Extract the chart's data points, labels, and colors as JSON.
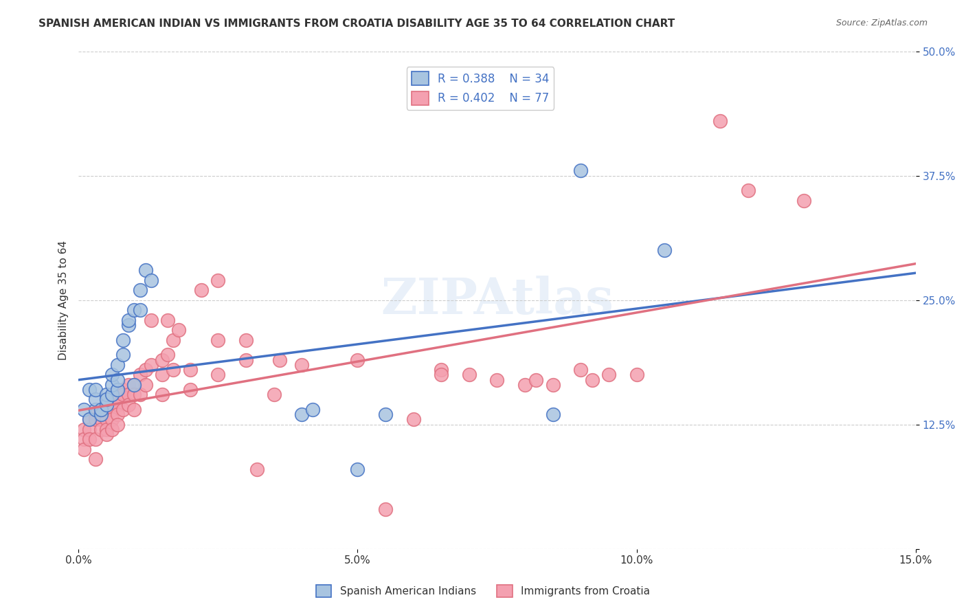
{
  "title": "SPANISH AMERICAN INDIAN VS IMMIGRANTS FROM CROATIA DISABILITY AGE 35 TO 64 CORRELATION CHART",
  "source": "Source: ZipAtlas.com",
  "xlabel_bottom": "",
  "ylabel": "Disability Age 35 to 64",
  "xlim": [
    0,
    0.15
  ],
  "ylim": [
    0,
    0.5
  ],
  "xticks": [
    0.0,
    0.05,
    0.1,
    0.15
  ],
  "xticklabels": [
    "0.0%",
    "5.0%",
    "10.0%",
    "15.0%"
  ],
  "yticks": [
    0.0,
    0.125,
    0.25,
    0.375,
    0.5
  ],
  "yticklabels": [
    "",
    "12.5%",
    "25.0%",
    "37.5%",
    "50.0%"
  ],
  "blue_R": 0.388,
  "blue_N": 34,
  "pink_R": 0.402,
  "pink_N": 77,
  "blue_label": "Spanish American Indians",
  "pink_label": "Immigrants from Croatia",
  "blue_color": "#a8c4e0",
  "pink_color": "#f4a0b0",
  "blue_line_color": "#4472c4",
  "pink_line_color": "#e07080",
  "watermark": "ZIPAtlas",
  "blue_x": [
    0.001,
    0.002,
    0.002,
    0.003,
    0.003,
    0.003,
    0.004,
    0.004,
    0.005,
    0.005,
    0.005,
    0.006,
    0.006,
    0.006,
    0.007,
    0.007,
    0.007,
    0.008,
    0.008,
    0.009,
    0.009,
    0.01,
    0.01,
    0.011,
    0.011,
    0.012,
    0.013,
    0.04,
    0.042,
    0.05,
    0.055,
    0.085,
    0.09,
    0.105
  ],
  "blue_y": [
    0.14,
    0.16,
    0.13,
    0.14,
    0.15,
    0.16,
    0.135,
    0.14,
    0.145,
    0.155,
    0.15,
    0.155,
    0.165,
    0.175,
    0.16,
    0.17,
    0.185,
    0.195,
    0.21,
    0.225,
    0.23,
    0.24,
    0.165,
    0.26,
    0.24,
    0.28,
    0.27,
    0.135,
    0.14,
    0.08,
    0.135,
    0.135,
    0.38,
    0.3
  ],
  "pink_x": [
    0.001,
    0.001,
    0.001,
    0.002,
    0.002,
    0.002,
    0.003,
    0.003,
    0.003,
    0.003,
    0.004,
    0.004,
    0.004,
    0.005,
    0.005,
    0.005,
    0.005,
    0.006,
    0.006,
    0.006,
    0.006,
    0.007,
    0.007,
    0.007,
    0.007,
    0.008,
    0.008,
    0.008,
    0.009,
    0.009,
    0.009,
    0.01,
    0.01,
    0.01,
    0.011,
    0.011,
    0.012,
    0.012,
    0.013,
    0.013,
    0.015,
    0.015,
    0.015,
    0.016,
    0.016,
    0.017,
    0.017,
    0.018,
    0.02,
    0.02,
    0.022,
    0.025,
    0.025,
    0.025,
    0.03,
    0.03,
    0.032,
    0.035,
    0.036,
    0.04,
    0.05,
    0.055,
    0.06,
    0.065,
    0.065,
    0.07,
    0.075,
    0.08,
    0.082,
    0.085,
    0.09,
    0.092,
    0.095,
    0.1,
    0.115,
    0.12,
    0.13
  ],
  "pink_y": [
    0.12,
    0.11,
    0.1,
    0.13,
    0.12,
    0.11,
    0.135,
    0.13,
    0.11,
    0.09,
    0.14,
    0.13,
    0.12,
    0.14,
    0.13,
    0.12,
    0.115,
    0.145,
    0.14,
    0.13,
    0.12,
    0.15,
    0.145,
    0.135,
    0.125,
    0.16,
    0.155,
    0.14,
    0.165,
    0.155,
    0.145,
    0.165,
    0.155,
    0.14,
    0.175,
    0.155,
    0.18,
    0.165,
    0.23,
    0.185,
    0.19,
    0.175,
    0.155,
    0.23,
    0.195,
    0.21,
    0.18,
    0.22,
    0.18,
    0.16,
    0.26,
    0.27,
    0.21,
    0.175,
    0.21,
    0.19,
    0.08,
    0.155,
    0.19,
    0.185,
    0.19,
    0.04,
    0.13,
    0.18,
    0.175,
    0.175,
    0.17,
    0.165,
    0.17,
    0.165,
    0.18,
    0.17,
    0.175,
    0.175,
    0.43,
    0.36,
    0.35
  ]
}
